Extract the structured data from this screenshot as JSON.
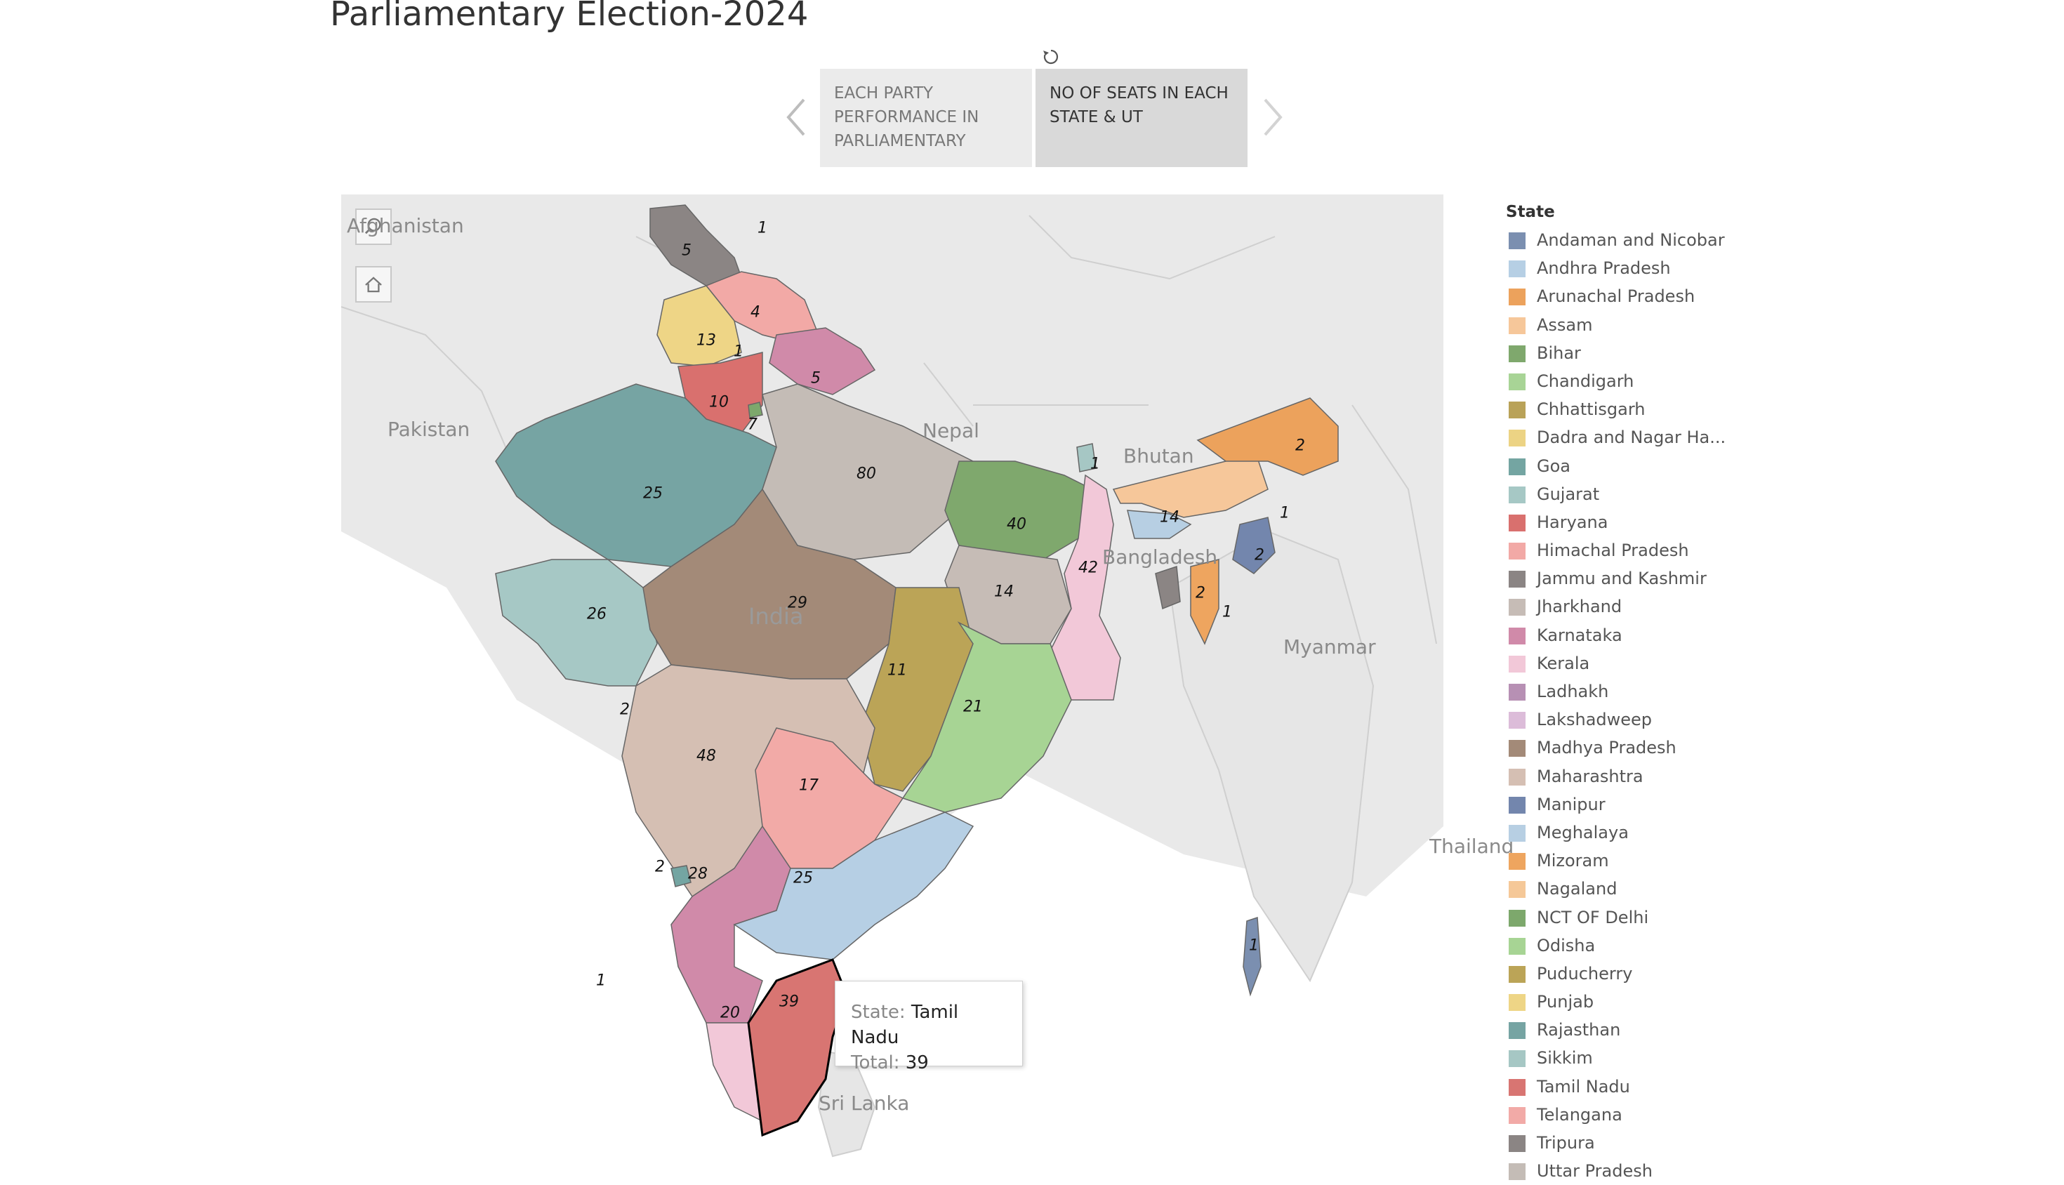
{
  "page": {
    "title": "Parliamentary Election-2024"
  },
  "story": {
    "points": [
      {
        "label": "EACH PARTY PERFORMANCE IN PARLIAMENTARY"
      },
      {
        "label": "NO OF SEATS IN EACH STATE & UT"
      }
    ]
  },
  "map": {
    "place_labels": {
      "afghanistan": "Afghanistan",
      "pakistan": "Pakistan",
      "nepal": "Nepal",
      "bhutan": "Bhutan",
      "bangladesh": "Bangladesh",
      "india": "India",
      "myanmar": "Myanmar",
      "thailand": "Thailand",
      "srilanka": "Sri Lanka"
    },
    "seat_labels": [
      {
        "id": "jammu",
        "value": "5"
      },
      {
        "id": "ladakh",
        "value": "1"
      },
      {
        "id": "himachal",
        "value": "4"
      },
      {
        "id": "punjab",
        "value": "13"
      },
      {
        "id": "chandigarh",
        "value": "1"
      },
      {
        "id": "uttarakhand",
        "value": "5"
      },
      {
        "id": "haryana",
        "value": "10"
      },
      {
        "id": "delhi",
        "value": "7"
      },
      {
        "id": "rajasthan",
        "value": "25"
      },
      {
        "id": "uttar-pradesh",
        "value": "80"
      },
      {
        "id": "bihar",
        "value": "40"
      },
      {
        "id": "sikkim",
        "value": "1"
      },
      {
        "id": "west-bengal",
        "value": "42"
      },
      {
        "id": "jharkhand",
        "value": "14"
      },
      {
        "id": "meghalaya",
        "value": "14"
      },
      {
        "id": "assam",
        "value": "1"
      },
      {
        "id": "arunachal",
        "value": "2"
      },
      {
        "id": "manipur",
        "value": "2"
      },
      {
        "id": "tripura",
        "value": "2"
      },
      {
        "id": "mizoram",
        "value": "1"
      },
      {
        "id": "gujarat",
        "value": "26"
      },
      {
        "id": "madhya-pradesh",
        "value": "29"
      },
      {
        "id": "chhattisgarh",
        "value": "11"
      },
      {
        "id": "odisha",
        "value": "21"
      },
      {
        "id": "dnh",
        "value": "2"
      },
      {
        "id": "maharashtra",
        "value": "48"
      },
      {
        "id": "telangana",
        "value": "17"
      },
      {
        "id": "goa",
        "value": "2"
      },
      {
        "id": "karnataka",
        "value": "28"
      },
      {
        "id": "andhra",
        "value": "25"
      },
      {
        "id": "lakshadweep",
        "value": "1"
      },
      {
        "id": "kerala",
        "value": "20"
      },
      {
        "id": "tamil-nadu",
        "value": "39"
      },
      {
        "id": "andaman",
        "value": "1"
      }
    ]
  },
  "tooltip": {
    "state_key": "State:",
    "state_value": "Tamil Nadu",
    "total_key": "Total:",
    "total_value": "39"
  },
  "legend": {
    "title": "State",
    "items": [
      {
        "label": "Andaman and Nicobar",
        "color": "#7b8fb0"
      },
      {
        "label": "Andhra Pradesh",
        "color": "#b6cfe4"
      },
      {
        "label": "Arunachal Pradesh",
        "color": "#eca25c"
      },
      {
        "label": "Assam",
        "color": "#f6c79a"
      },
      {
        "label": "Bihar",
        "color": "#7fa86d"
      },
      {
        "label": "Chandigarh",
        "color": "#a8d496"
      },
      {
        "label": "Chhattisgarh",
        "color": "#b9a258"
      },
      {
        "label": "Dadra and Nagar Ha...",
        "color": "#ecd384"
      },
      {
        "label": "Goa",
        "color": "#74a5a2"
      },
      {
        "label": "Gujarat",
        "color": "#a6c8c5"
      },
      {
        "label": "Haryana",
        "color": "#d9706e"
      },
      {
        "label": "Himachal Pradesh",
        "color": "#f2a9a6"
      },
      {
        "label": "Jammu and Kashmir",
        "color": "#8b8584"
      },
      {
        "label": "Jharkhand",
        "color": "#c6bcb6"
      },
      {
        "label": "Karnataka",
        "color": "#d08aa9"
      },
      {
        "label": "Kerala",
        "color": "#f2c8d8"
      },
      {
        "label": "Ladhakh",
        "color": "#b790b4"
      },
      {
        "label": "Lakshadweep",
        "color": "#dcbcd9"
      },
      {
        "label": "Madhya Pradesh",
        "color": "#a38a78"
      },
      {
        "label": "Maharashtra",
        "color": "#d5bfb3"
      },
      {
        "label": "Manipur",
        "color": "#7386ad"
      },
      {
        "label": "Meghalaya",
        "color": "#b7cfe3"
      },
      {
        "label": "Mizoram",
        "color": "#eea55f"
      },
      {
        "label": "Nagaland",
        "color": "#f5c898"
      },
      {
        "label": "NCT OF Delhi",
        "color": "#7da86c"
      },
      {
        "label": "Odisha",
        "color": "#a7d494"
      },
      {
        "label": "Puducherry",
        "color": "#bba457"
      },
      {
        "label": "Punjab",
        "color": "#eed586"
      },
      {
        "label": "Rajasthan",
        "color": "#76a4a3"
      },
      {
        "label": "Sikkim",
        "color": "#a6c7c4"
      },
      {
        "label": "Tamil Nadu",
        "color": "#d87572"
      },
      {
        "label": "Telangana",
        "color": "#f2aaa7"
      },
      {
        "label": "Tripura",
        "color": "#8b8584"
      },
      {
        "label": "Uttar Pradesh",
        "color": "#c4bcb6"
      }
    ]
  }
}
